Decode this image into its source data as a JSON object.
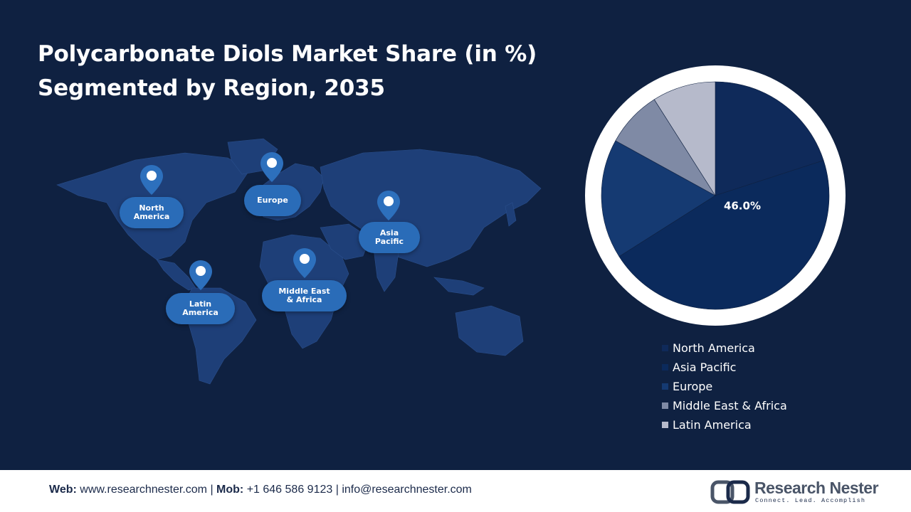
{
  "header": {
    "title_line1": "Polycarbonate Diols Market Share (in %)",
    "title_line2": "Segmented by Region, 2035"
  },
  "map": {
    "regions": [
      {
        "name": "North America",
        "label": "North\nAmerica"
      },
      {
        "name": "Europe",
        "label": "Europe"
      },
      {
        "name": "Asia Pacific",
        "label": "Asia\nPacific"
      },
      {
        "name": "Latin America",
        "label": "Latin\nAmerica"
      },
      {
        "name": "Middle East & Africa",
        "label": "Middle East\n& Africa"
      }
    ],
    "pin_icon": "location-pin-icon"
  },
  "chart_data": {
    "type": "pie",
    "slices": [
      {
        "label": "North America",
        "value": 20.0,
        "color": "#0f2a5a"
      },
      {
        "label": "Asia Pacific",
        "value": 46.0,
        "color": "#0b2a5c"
      },
      {
        "label": "Europe",
        "value": 17.0,
        "color": "#153a72"
      },
      {
        "label": "Middle East & Africa",
        "value": 8.0,
        "color": "#7f8aa5"
      },
      {
        "label": "Latin America",
        "value": 9.0,
        "color": "#b6bacb"
      }
    ],
    "data_labels": [
      {
        "slice": "Asia Pacific",
        "text": "46.0%"
      }
    ],
    "legend_position": "bottom"
  },
  "footer": {
    "web_label": "Web:",
    "web_value": " www.researchnester.com",
    "sep1": " | ",
    "mob_label": "Mob:",
    "mob_value": " +1 646 586 9123",
    "sep2": " | ",
    "email": "info@researchnester.com"
  },
  "logo": {
    "name": "Research Nester",
    "tagline": "Connect. Lead. Accomplish"
  },
  "colors": {
    "background": "#0f2141",
    "map_land": "#1e3f78",
    "label_bubble": "#2a6cb8",
    "pin": "#2d70bd"
  }
}
